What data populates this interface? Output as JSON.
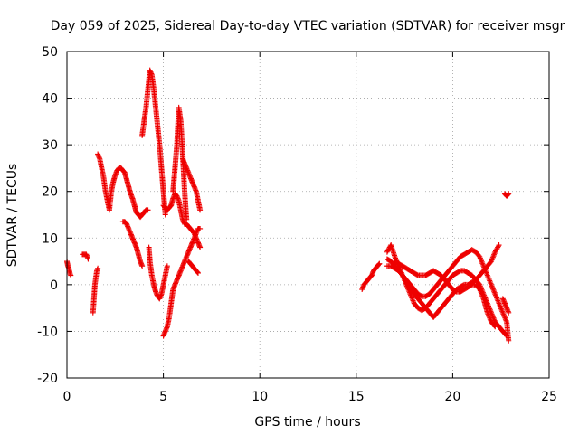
{
  "chart_data": {
    "type": "scatter",
    "title": "Day 059 of 2025, Sidereal Day-to-day VTEC variation (SDTVAR) for receiver msgr",
    "xlabel": "GPS time / hours",
    "ylabel": "SDTVAR / TECUs",
    "xlim": [
      0,
      25
    ],
    "ylim": [
      -20,
      50
    ],
    "xticks": [
      "0",
      "5",
      "10",
      "15",
      "20",
      "25"
    ],
    "yticks": [
      "-20",
      "-10",
      "0",
      "10",
      "20",
      "30",
      "40",
      "50"
    ],
    "grid": true,
    "marker": "plus",
    "color": "#ee0000",
    "series": [
      {
        "name": "s1",
        "x": [
          0,
          0.05,
          0.1,
          0.15,
          0.2
        ],
        "y": [
          5,
          4,
          3.5,
          2.5,
          2
        ]
      },
      {
        "name": "s2",
        "x": [
          0.8,
          0.9,
          1.0,
          1.05,
          1.1
        ],
        "y": [
          6.5,
          6.5,
          6.5,
          6,
          5.5
        ]
      },
      {
        "name": "s3",
        "x": [
          1.35,
          1.4,
          1.45,
          1.5,
          1.55,
          1.6
        ],
        "y": [
          -6,
          -3,
          0,
          1.5,
          3,
          3.5
        ]
      },
      {
        "name": "s4",
        "x": [
          1.6,
          1.7,
          1.8,
          1.9,
          2.0,
          2.1,
          2.2,
          2.3,
          2.4,
          2.5,
          2.6,
          2.7,
          2.8,
          2.9,
          3.0,
          3.1,
          3.2,
          3.3,
          3.4,
          3.5,
          3.6,
          3.7,
          3.8,
          3.9,
          4.0,
          4.1,
          4.2
        ],
        "y": [
          28,
          27,
          25,
          23,
          20,
          18,
          16,
          20,
          22,
          23.5,
          24.5,
          25,
          25,
          24.5,
          24,
          22.5,
          21,
          19.5,
          18.5,
          17,
          15.5,
          15,
          14.5,
          15,
          15.5,
          16,
          16
        ]
      },
      {
        "name": "s5",
        "x": [
          2.9,
          3.0,
          3.1,
          3.2,
          3.3,
          3.4,
          3.5,
          3.6,
          3.7,
          3.8,
          3.9
        ],
        "y": [
          13.5,
          13.5,
          13,
          12,
          11,
          10,
          9,
          8,
          6.5,
          5,
          4
        ]
      },
      {
        "name": "s6",
        "x": [
          3.9,
          4.0,
          4.1,
          4.2,
          4.3,
          4.4,
          4.5,
          4.6,
          4.7,
          4.8,
          4.9,
          5.0,
          5.1
        ],
        "y": [
          32,
          35,
          38,
          42,
          46,
          45,
          42,
          38,
          34,
          30,
          25,
          20,
          15
        ]
      },
      {
        "name": "s7",
        "x": [
          4.25,
          4.3,
          4.4,
          4.5,
          4.6,
          4.7,
          4.8,
          4.9,
          5.0,
          5.1,
          5.2
        ],
        "y": [
          8,
          5,
          2,
          0,
          -1.5,
          -2.5,
          -3,
          -2,
          0,
          2,
          4
        ]
      },
      {
        "name": "s8",
        "x": [
          5.0,
          5.1,
          5.2,
          5.3,
          5.4,
          5.5,
          5.6,
          5.7,
          5.8
        ],
        "y": [
          -11,
          -10,
          -9,
          -7,
          -4,
          -1,
          0,
          1,
          2
        ]
      },
      {
        "name": "s9",
        "x": [
          5.5,
          5.6,
          5.7,
          5.8,
          5.9,
          6.0,
          6.1,
          6.2
        ],
        "y": [
          20,
          25,
          30,
          38,
          35,
          28,
          20,
          14
        ]
      },
      {
        "name": "s10",
        "x": [
          5.0,
          5.1,
          5.2,
          5.3,
          5.4,
          5.5,
          5.6,
          5.7,
          5.8,
          5.9,
          6.0,
          6.1,
          6.2,
          6.3,
          6.4,
          6.5,
          6.6,
          6.7,
          6.8,
          6.9
        ],
        "y": [
          17,
          16.5,
          16,
          16.5,
          17,
          18.5,
          19.5,
          19,
          18,
          16,
          14,
          13,
          13,
          12.5,
          12,
          11.5,
          11,
          10,
          9,
          8
        ]
      },
      {
        "name": "s11",
        "x": [
          5.8,
          5.9,
          6.0,
          6.1,
          6.2,
          6.3,
          6.4,
          6.5,
          6.6,
          6.7,
          6.8,
          6.9
        ],
        "y": [
          2,
          3,
          4,
          5,
          6,
          7,
          8,
          9,
          10,
          11,
          12,
          12
        ]
      },
      {
        "name": "s12",
        "x": [
          6.0,
          6.1,
          6.2,
          6.3,
          6.4,
          6.5,
          6.6,
          6.7,
          6.8,
          6.9
        ],
        "y": [
          27,
          26,
          25,
          24,
          23,
          22,
          21,
          20,
          18,
          16
        ]
      },
      {
        "name": "s13",
        "x": [
          6.3,
          6.4,
          6.5,
          6.6,
          6.7,
          6.8
        ],
        "y": [
          5,
          4.5,
          4,
          3.5,
          3,
          2.5
        ]
      },
      {
        "name": "s14",
        "x": [
          15.3,
          15.4,
          15.5,
          15.6,
          15.7,
          15.8,
          15.9,
          16.0,
          16.1,
          16.2
        ],
        "y": [
          -1,
          0,
          0.5,
          1,
          1.5,
          2,
          3,
          3.5,
          4,
          4.5
        ]
      },
      {
        "name": "s15",
        "x": [
          16.6,
          16.8,
          17.0,
          17.2,
          17.4,
          17.6,
          17.8,
          18.0,
          18.2,
          18.4,
          18.6,
          18.8,
          19.0,
          19.2,
          19.4,
          19.6,
          19.8,
          20.0,
          20.2,
          20.4,
          20.6,
          20.8,
          21.0,
          21.2,
          21.4,
          21.6,
          21.8,
          22.0,
          22.2,
          22.4,
          22.6,
          22.8
        ],
        "y": [
          7,
          8.5,
          6,
          4,
          2,
          0,
          -2,
          -4,
          -5,
          -5.5,
          -5,
          -4,
          -3,
          -2,
          -1,
          0,
          1,
          2,
          2.5,
          3,
          3,
          2.5,
          2,
          1,
          0,
          -2,
          -4,
          -6,
          -8,
          -9,
          -10,
          -11
        ]
      },
      {
        "name": "s16",
        "x": [
          16.6,
          16.8,
          17.0,
          17.2,
          17.4,
          17.6,
          17.8,
          18.0,
          18.2,
          18.4,
          18.6,
          18.8,
          19.0,
          19.2,
          19.4,
          19.6,
          19.8,
          20.0,
          20.2,
          20.4,
          20.6,
          20.8,
          21.0,
          21.2,
          21.4,
          21.6,
          21.8,
          22.0,
          22.2,
          22.4,
          22.6,
          22.8,
          22.9
        ],
        "y": [
          5.5,
          5,
          4,
          3,
          2,
          1,
          0,
          -1,
          -2,
          -2.5,
          -2.5,
          -2,
          -1,
          0,
          1,
          2,
          3,
          4,
          5,
          6,
          6.5,
          7,
          7.5,
          7,
          6,
          4,
          2,
          0,
          -2,
          -4,
          -6,
          -8,
          -12
        ]
      },
      {
        "name": "s17",
        "x": [
          16.6,
          16.8,
          17.0,
          17.2,
          17.4,
          17.6,
          17.8,
          18.0,
          18.2,
          18.4,
          18.6,
          18.8,
          19.0,
          19.2,
          19.4,
          19.6,
          19.8,
          20.0,
          20.2,
          20.4,
          20.6,
          20.8,
          21.0,
          21.2,
          21.4,
          21.6,
          21.8,
          22.0,
          22.2,
          22.4
        ],
        "y": [
          4,
          4,
          3.5,
          3,
          2,
          0.5,
          -1,
          -2,
          -3,
          -4,
          -5,
          -6,
          -7,
          -6,
          -5,
          -4,
          -3,
          -2,
          -1,
          -0.5,
          0,
          0,
          0.5,
          1,
          2,
          3,
          4,
          5,
          7,
          8.5
        ]
      },
      {
        "name": "s18",
        "x": [
          17.0,
          17.2,
          17.4,
          17.6,
          17.8,
          18.0,
          18.2,
          18.4,
          18.6,
          18.8,
          19.0,
          19.2,
          19.4,
          19.6,
          19.8,
          20.0,
          20.2,
          20.4,
          20.6,
          20.8,
          21.0,
          21.2,
          21.4,
          21.6,
          21.8,
          22.0,
          22.2
        ],
        "y": [
          5,
          4.5,
          4,
          3.5,
          3,
          2.5,
          2,
          2,
          2,
          2.5,
          3,
          2.5,
          2,
          1,
          0,
          -1,
          -1.5,
          -1.5,
          -1,
          -0.5,
          0,
          0,
          -1,
          -3,
          -6,
          -8,
          -9
        ]
      },
      {
        "name": "s19",
        "x": [
          22.6,
          22.7,
          22.8,
          22.9
        ],
        "y": [
          -3,
          -4,
          -5,
          -6
        ]
      },
      {
        "name": "s20",
        "x": [
          22.7,
          22.8,
          22.9
        ],
        "y": [
          19.5,
          19,
          19.5
        ]
      }
    ]
  }
}
